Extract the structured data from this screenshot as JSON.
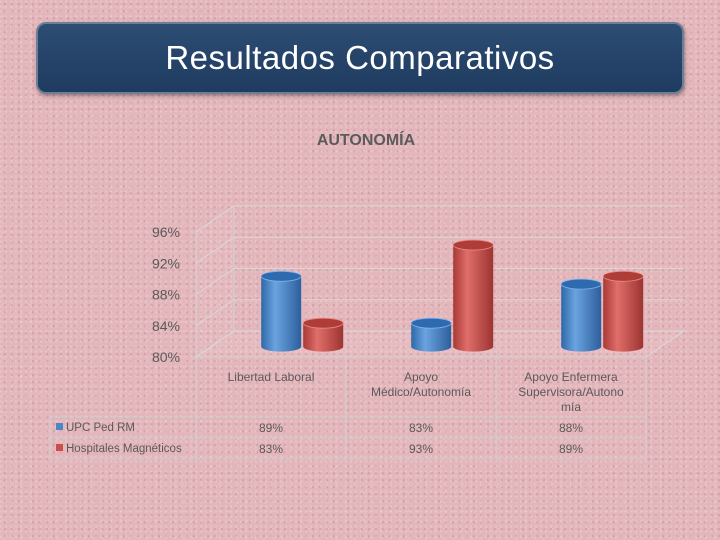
{
  "slide": {
    "title": "Resultados Comparativos"
  },
  "chart_data": {
    "type": "bar",
    "title": "AUTONOMÍA",
    "categories": [
      [
        "Libertad Laboral"
      ],
      [
        "Apoyo",
        "Médico/Autonomía"
      ],
      [
        "Apoyo Enfermera",
        "Supervisora/Autono",
        "mía"
      ]
    ],
    "series": [
      {
        "name": "UPC Ped RM",
        "values": [
          89,
          83,
          88
        ],
        "labels": [
          "89%",
          "83%",
          "88%"
        ],
        "color": "#4a86c8"
      },
      {
        "name": "Hospitales Magnéticos",
        "values": [
          83,
          93,
          89
        ],
        "labels": [
          "83%",
          "93%",
          "89%"
        ],
        "color": "#c94f4c"
      }
    ],
    "y_ticks": [
      "80%",
      "84%",
      "88%",
      "92%",
      "96%"
    ],
    "ylim": [
      80,
      96
    ],
    "grid": true,
    "legend": "data-table"
  }
}
